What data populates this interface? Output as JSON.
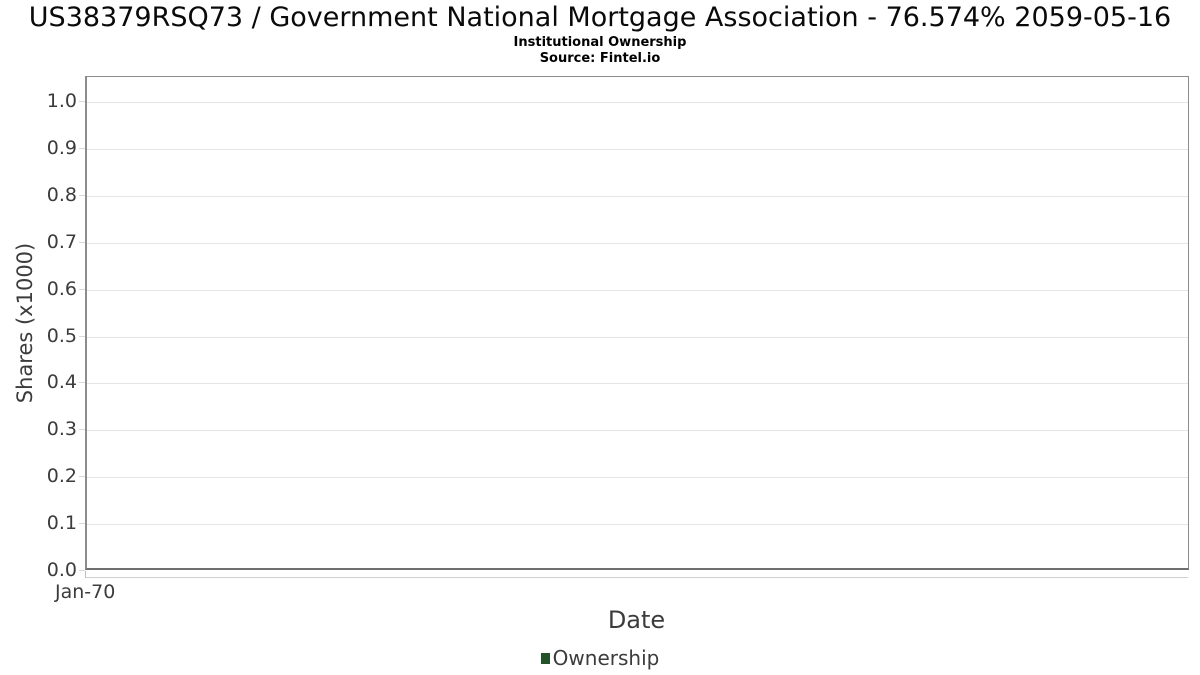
{
  "chart_data": {
    "type": "line",
    "title": "US38379RSQ73 / Government National Mortgage Association - 76.574% 2059-05-16",
    "subtitle": "Institutional Ownership",
    "source": "Source: Fintel.io",
    "xlabel": "Date",
    "ylabel": "Shares (x1000)",
    "x": [],
    "series": [
      {
        "name": "Ownership",
        "color": "#24522b",
        "values": []
      }
    ],
    "xticks": [
      "Jan-70"
    ],
    "yticks": [
      "0.0",
      "0.1",
      "0.2",
      "0.3",
      "0.4",
      "0.5",
      "0.6",
      "0.7",
      "0.8",
      "0.9",
      "1.0"
    ],
    "ylim": [
      0,
      1.05
    ],
    "grid": true,
    "legend_position": "bottom"
  },
  "colors": {
    "gridline": "#e5e5e5",
    "plot_border": "#8c8c8c",
    "axis_text": "#3c3c3c",
    "title_text": "#0a0a0a",
    "legend_marker": "#24522b"
  }
}
